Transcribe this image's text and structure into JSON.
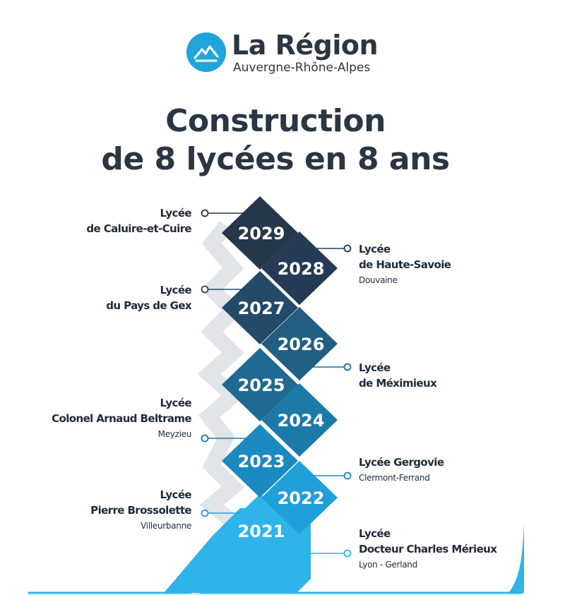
{
  "logo": {
    "name": "La Région",
    "subtitle": "Auvergne-Rhône-Alpes",
    "icon": "mountain-logo-icon",
    "color": "#1fa4dc"
  },
  "title_line1": "Construction",
  "title_line2": "de 8 lycées en 8 ans",
  "timeline": [
    {
      "year": "2029",
      "side": "left",
      "name": [
        "Lycée",
        "de Caluire-et-Cuire"
      ],
      "city": "",
      "color": "#26374b"
    },
    {
      "year": "2028",
      "side": "right",
      "name": [
        "Lycée",
        "de Haute-Savoie"
      ],
      "city": "Douvaine",
      "color": "#253a55"
    },
    {
      "year": "2027",
      "side": "left",
      "name": [
        "Lycée",
        "du Pays de Gex"
      ],
      "city": "",
      "color": "#234a68"
    },
    {
      "year": "2026",
      "side": "right",
      "name": [],
      "city": "",
      "color": "#215e82"
    },
    {
      "year": "2025",
      "side": "right",
      "name": [
        "Lycée",
        "de Méximieux"
      ],
      "city": "",
      "color": "#1f6a92"
    },
    {
      "year": "2024",
      "side": "left",
      "name": [
        "Lycée",
        "Colonel Arnaud Beltrame"
      ],
      "city": "Meyzieu",
      "color": "#1c7aa8"
    },
    {
      "year": "2023",
      "side": "right",
      "name": [
        "Lycée Gergovie"
      ],
      "city": "Clermont-Ferrand",
      "color": "#1a8ac0"
    },
    {
      "year": "2022",
      "side": "left",
      "name": [
        "Lycée",
        "Pierre Brossolette"
      ],
      "city": "Villeurbanne",
      "color": "#209fd9"
    },
    {
      "year": "2021",
      "side": "right",
      "name": [
        "Lycée",
        "Docteur Charles Mérieux"
      ],
      "city": "Lyon - Gerland",
      "color": "#2fb4e9"
    }
  ]
}
